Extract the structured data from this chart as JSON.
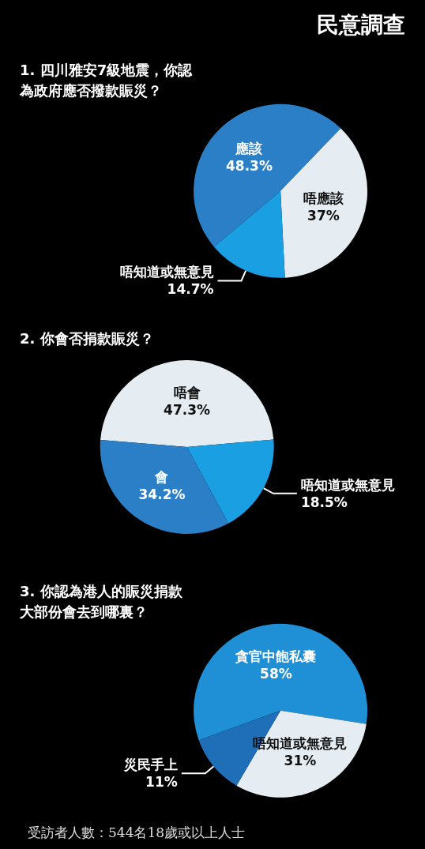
{
  "chart_data": [
    {
      "type": "pie",
      "title": "民意調查",
      "subtitle": "1. 四川雅安7級地震，你認為政府應否撥款賑災？",
      "categories": [
        "應該",
        "唔應該",
        "唔知道或無意見"
      ],
      "values": [
        48.3,
        37,
        14.7
      ],
      "colors": [
        "#2b7fc6",
        "#e6edf2",
        "#1a9fe2"
      ],
      "value_labels": [
        "48.3%",
        "37%",
        "14.7%"
      ],
      "legend": false
    },
    {
      "type": "pie",
      "title": "2. 你會否捐款賑災？",
      "categories": [
        "唔會",
        "會",
        "唔知道或無意見"
      ],
      "values": [
        47.3,
        34.2,
        18.5
      ],
      "colors": [
        "#e6edf2",
        "#2b7fc6",
        "#1a9fe2"
      ],
      "value_labels": [
        "47.3%",
        "34.2%",
        "18.5%"
      ],
      "legend": false
    },
    {
      "type": "pie",
      "title": "3. 你認為港人的賑災捐款大部份會去到哪裏？",
      "categories": [
        "貪官中飽私囊",
        "唔知道或無意見",
        "災民手上"
      ],
      "values": [
        58,
        31,
        11
      ],
      "colors": [
        "#1f8fd6",
        "#e6edf2",
        "#1f6fb8"
      ],
      "value_labels": [
        "58%",
        "31%",
        "11%"
      ],
      "legend": false,
      "annotations": [
        "受訪者人數：544名18歲或以上人士"
      ]
    }
  ]
}
